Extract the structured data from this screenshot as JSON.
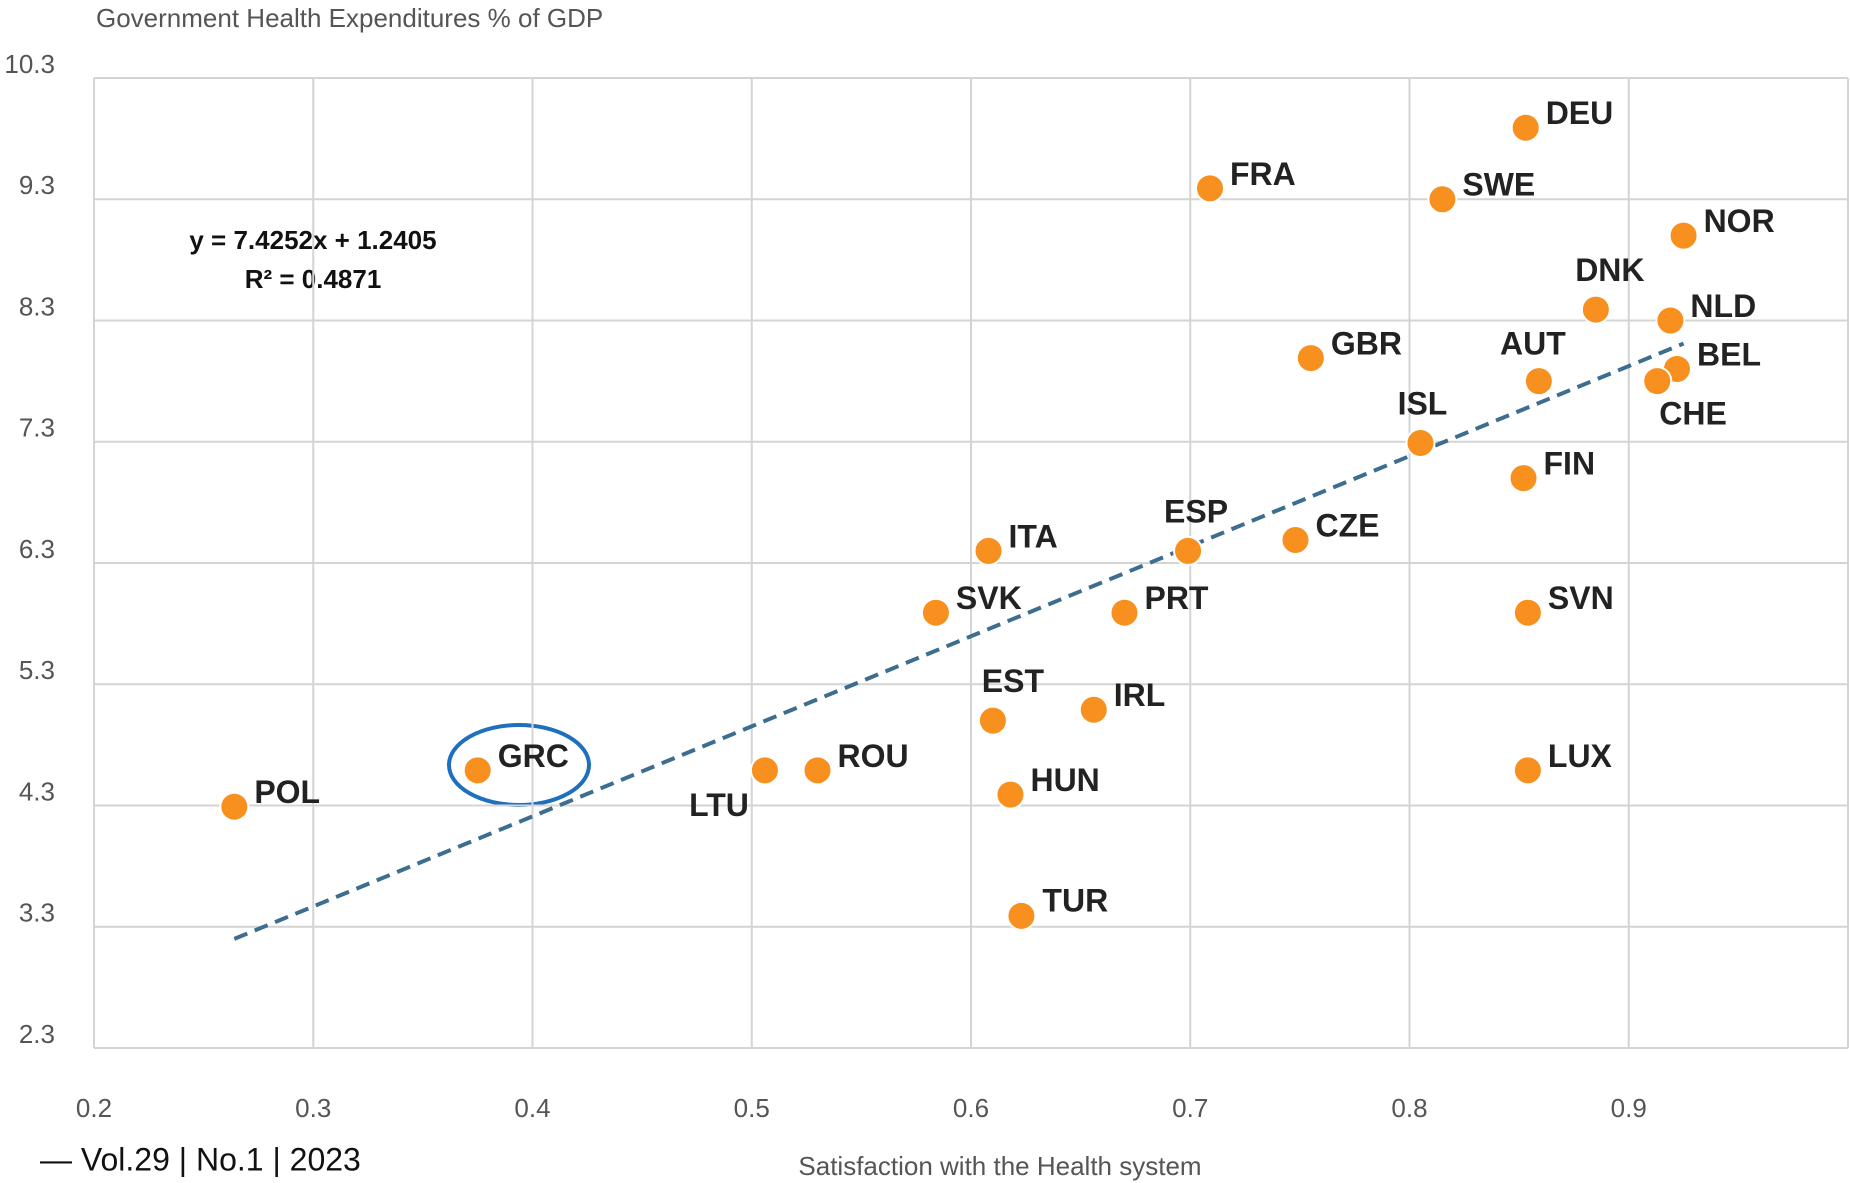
{
  "chart_data": {
    "type": "scatter",
    "title": "Government Health Expenditures % of GDP",
    "x_label": "Satisfaction with the Health system",
    "equation": "y = 7.4252x + 1.2405",
    "r_squared": "R² = 0.4871",
    "footer": "— Vol.29 | No.1 | 2023",
    "xlim": [
      0.2,
      1.0
    ],
    "xticks": [
      0.2,
      0.3,
      0.4,
      0.5,
      0.6,
      0.7,
      0.8,
      0.9
    ],
    "ylim": [
      2.3,
      10.3
    ],
    "yticks": [
      2.3,
      3.3,
      4.3,
      5.3,
      6.3,
      7.3,
      8.3,
      9.3,
      10.3
    ],
    "grid": true,
    "trendline": {
      "color": "#3d6e8f",
      "x": [
        0.264,
        0.925
      ],
      "y": [
        3.2,
        8.11
      ]
    },
    "series": [
      {
        "color": "#f7901e",
        "labels": [
          "DEU",
          "FRA",
          "SWE",
          "NOR",
          "DNK",
          "NLD",
          "GBR",
          "AUT",
          "BEL",
          "CHE",
          "ISL",
          "FIN",
          "ITA",
          "ESP",
          "CZE",
          "SVK",
          "PRT",
          "SVN",
          "EST",
          "IRL",
          "GRC",
          "LTU",
          "ROU",
          "LUX",
          "HUN",
          "POL",
          "TUR"
        ],
        "x": [
          0.853,
          0.709,
          0.815,
          0.925,
          0.885,
          0.919,
          0.755,
          0.859,
          0.922,
          0.913,
          0.805,
          0.852,
          0.608,
          0.699,
          0.748,
          0.584,
          0.67,
          0.854,
          0.61,
          0.656,
          0.375,
          0.506,
          0.53,
          0.854,
          0.618,
          0.264,
          0.623
        ],
        "values": [
          9.89,
          9.39,
          9.3,
          9.0,
          8.39,
          8.3,
          7.99,
          7.8,
          7.9,
          7.8,
          7.29,
          7.0,
          6.4,
          6.4,
          6.49,
          5.89,
          5.89,
          5.89,
          5.0,
          5.09,
          4.59,
          4.59,
          4.59,
          4.59,
          4.39,
          4.29,
          3.39
        ]
      }
    ]
  }
}
